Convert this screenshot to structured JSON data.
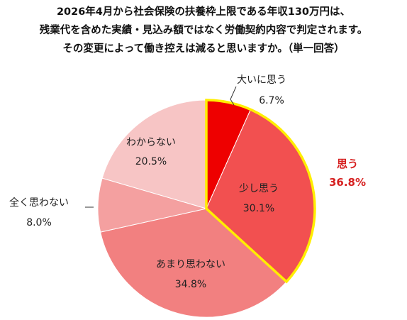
{
  "title_lines": [
    "2026年4月から社会保険の扶養枠上限である年収130万円は、",
    "残業代を含めた実績・見込み額ではなく労働契約内容で判定されます。",
    "その変更によって働き控えは減ると思いますか。（単一回答）"
  ],
  "chart_data": {
    "type": "pie",
    "title": "2026年4月から社会保険の扶養枠上限である年収130万円は、残業代を含めた実績・見込み額ではなく労働契約内容で判定されます。その変更によって働き控えは減ると思いますか。（単一回答）",
    "slices": [
      {
        "label": "大いに思う",
        "value": 6.7,
        "value_label": "6.7%",
        "color": "#ee0000"
      },
      {
        "label": "少し思う",
        "value": 30.1,
        "value_label": "30.1%",
        "color": "#f25050"
      },
      {
        "label": "あまり思わない",
        "value": 34.8,
        "value_label": "34.8%",
        "color": "#f28080"
      },
      {
        "label": "全く思わない",
        "value": 8.0,
        "value_label": "8.0%",
        "color": "#f4a0a0"
      },
      {
        "label": "わからない",
        "value": 20.5,
        "value_label": "20.5%",
        "color": "#f7c5c5"
      }
    ],
    "highlight": {
      "label": "思う",
      "value_label": "36.8%",
      "slices": [
        "大いに思う",
        "少し思う"
      ],
      "outline_color": "#ffee00"
    }
  }
}
